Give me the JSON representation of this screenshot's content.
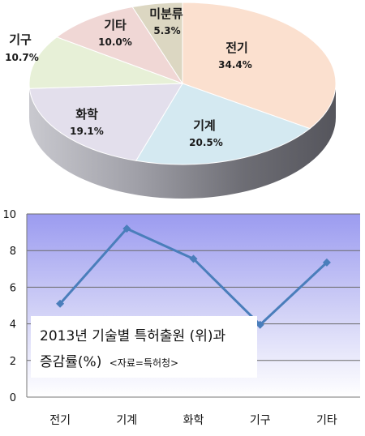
{
  "chart_data": [
    {
      "type": "pie",
      "categories": [
        "전기",
        "기계",
        "화학",
        "기구",
        "기타",
        "미분류"
      ],
      "values": [
        34.4,
        20.5,
        19.1,
        10.7,
        10.0,
        5.3
      ],
      "labels": [
        "34.4%",
        "20.5%",
        "19.1%",
        "10.7%",
        "10.0%",
        "5.3%"
      ],
      "colors": [
        "#fbe0cf",
        "#d4e9f1",
        "#e3dfec",
        "#e7f0d7",
        "#f0d7d5",
        "#dcd7c2"
      ]
    },
    {
      "type": "line",
      "categories": [
        "전기",
        "기계",
        "화학",
        "기구",
        "기타"
      ],
      "series": [
        {
          "values": [
            5.1,
            9.2,
            7.55,
            3.95,
            7.35
          ]
        }
      ],
      "ylim": [
        0,
        10
      ],
      "yticks": [
        "0",
        "2",
        "4",
        "6",
        "8",
        "10"
      ],
      "caption": {
        "line1": "2013년 기술별 특허출원 (위)과",
        "line2_main": "증감률(%)",
        "line2_small": "<자료=특허청>"
      },
      "line_color": "#4a7ebb"
    }
  ]
}
